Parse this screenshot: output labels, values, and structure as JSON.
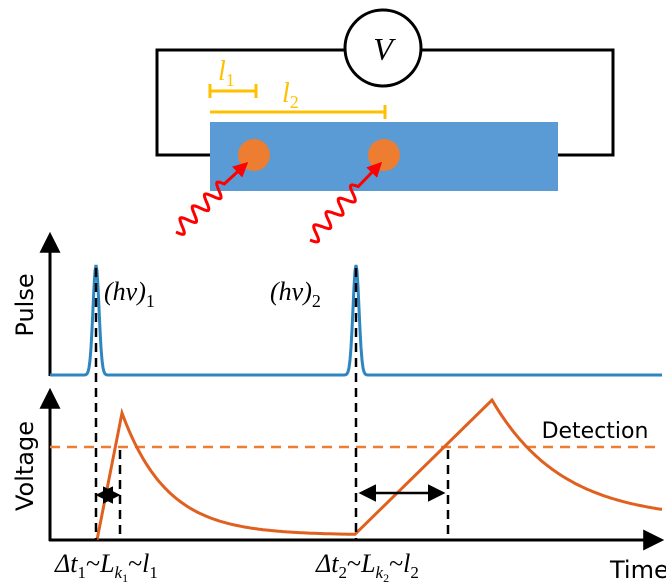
{
  "voltmeter": "V",
  "lengths": [
    {
      "base": "l",
      "sub": "1"
    },
    {
      "base": "l",
      "sub": "2"
    }
  ],
  "photons": [
    {
      "base": "(hν)",
      "sub": "1"
    },
    {
      "base": "(hν)",
      "sub": "2"
    }
  ],
  "axes": {
    "pulse": "Pulse",
    "voltage": "Voltage",
    "time": "Time"
  },
  "threshold": "Detection",
  "delays": [
    {
      "dt": "Δt",
      "dt_sub": "1",
      "sep": "~",
      "L": "L",
      "k": "k",
      "k_sub": "1",
      "l": "l",
      "l_sub": "1"
    },
    {
      "dt": "Δt",
      "dt_sub": "2",
      "sep": "~",
      "L": "L",
      "k": "k",
      "k_sub": "2",
      "l": "l",
      "l_sub": "2"
    }
  ]
}
